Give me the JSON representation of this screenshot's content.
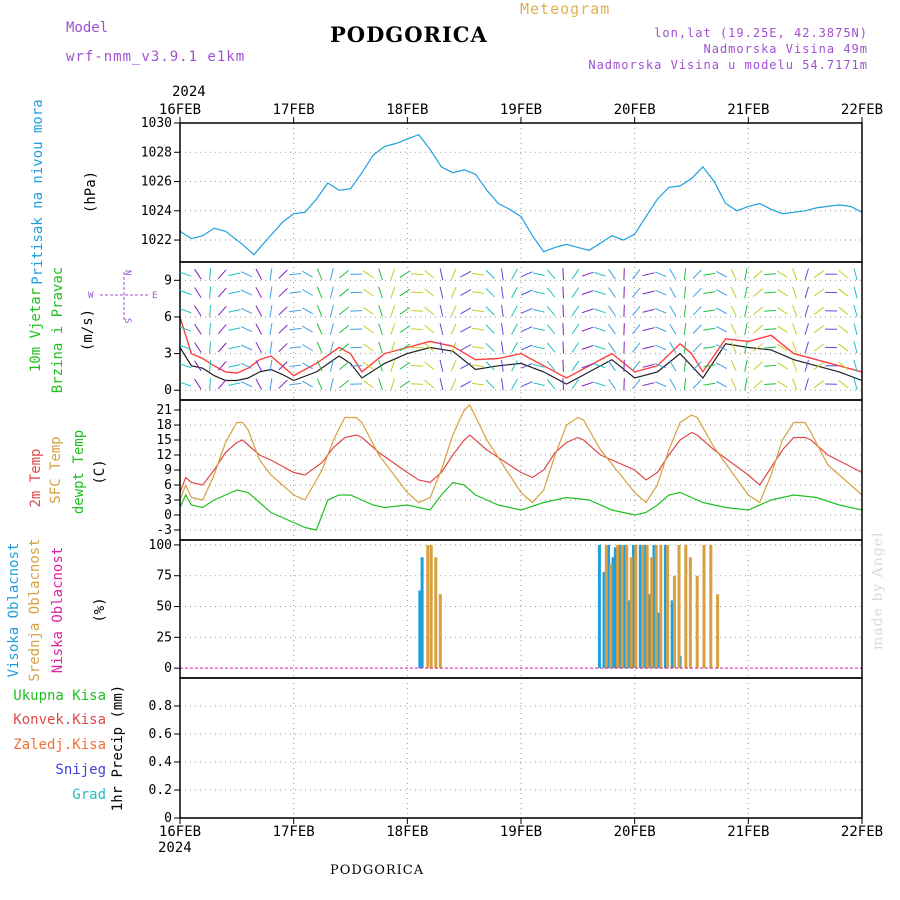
{
  "header": {
    "city": "PODGORICA",
    "meteogram": "Meteogram",
    "model_label": "Model",
    "model_name": "wrf-nmm_v3.9.1 e1km",
    "location_lines": [
      "lon,lat (19.25E, 42.3875N)",
      "Nadmorska Visina 49m",
      "Nadmorska Visina u modelu 54.7171m"
    ],
    "year": "2024",
    "footer_city": "PODGORICA",
    "credit": "made by Angel"
  },
  "colors": {
    "pressure": "#1ea0e0",
    "temp2m": "#e04848",
    "sfc": "#d8a040",
    "dewpt": "#20c020",
    "wind_speed": "#202020",
    "gust": "#ff4040",
    "high_cloud": "#1ea0e0",
    "mid_cloud": "#d8a040",
    "low_cloud": "#e020a0",
    "precip_total": "#20c020",
    "precip_conv": "#e04848",
    "precip_frz": "#f07030",
    "snow": "#4040e0",
    "hail": "#20c0c0",
    "axis_label_purple": "#a050d0"
  },
  "chart_data": [
    {
      "type": "line",
      "name": "pressure",
      "ylabel_lines": [
        "Pritisak na nivou mora",
        "(hPa)"
      ],
      "ylim": [
        1020.5,
        1030
      ],
      "yticks": [
        1022,
        1024,
        1026,
        1028,
        1030
      ],
      "x_dates": [
        "16FEB",
        "17FEB",
        "18FEB",
        "19FEB",
        "20FEB",
        "21FEB",
        "22FEB"
      ],
      "series": [
        {
          "key": "pressure",
          "x": [
            0,
            0.1,
            0.2,
            0.3,
            0.4,
            0.55,
            0.65,
            0.75,
            0.9,
            1.0,
            1.1,
            1.2,
            1.3,
            1.4,
            1.5,
            1.6,
            1.7,
            1.8,
            1.9,
            2.0,
            2.1,
            2.2,
            2.3,
            2.4,
            2.5,
            2.6,
            2.7,
            2.8,
            2.9,
            3.0,
            3.1,
            3.2,
            3.3,
            3.4,
            3.5,
            3.6,
            3.7,
            3.8,
            3.9,
            4.0,
            4.1,
            4.2,
            4.3,
            4.4,
            4.5,
            4.6,
            4.7,
            4.8,
            4.9,
            5.0,
            5.1,
            5.2,
            5.3,
            5.4,
            5.5,
            5.6,
            5.7,
            5.8,
            5.9,
            6.0
          ],
          "y": [
            1022.6,
            1022.1,
            1022.3,
            1022.8,
            1022.6,
            1021.7,
            1021.0,
            1021.9,
            1023.2,
            1023.8,
            1023.9,
            1024.8,
            1025.9,
            1025.4,
            1025.5,
            1026.6,
            1027.8,
            1028.4,
            1028.6,
            1028.9,
            1029.2,
            1028.2,
            1027.0,
            1026.6,
            1026.8,
            1026.5,
            1025.4,
            1024.5,
            1024.1,
            1023.6,
            1022.3,
            1021.2,
            1021.5,
            1021.7,
            1021.5,
            1021.3,
            1021.8,
            1022.3,
            1022.0,
            1022.4,
            1023.6,
            1024.8,
            1025.6,
            1025.7,
            1026.2,
            1027.0,
            1026.0,
            1024.5,
            1024.0,
            1024.3,
            1024.5,
            1024.1,
            1023.8,
            1023.9,
            1024.0,
            1024.2,
            1024.3,
            1024.4,
            1024.3,
            1023.9
          ]
        }
      ]
    },
    {
      "type": "line",
      "name": "wind",
      "ylabel_lines": [
        "10m Vjetar",
        "Brzina i Pravac",
        "(m/s)"
      ],
      "compass": {
        "n": "N",
        "s": "S",
        "w": "W",
        "e": "E"
      },
      "ylim": [
        -0.8,
        10.5
      ],
      "yticks": [
        0,
        3,
        6,
        9
      ],
      "series": [
        {
          "key": "wind_speed",
          "x": [
            0,
            0.1,
            0.2,
            0.3,
            0.4,
            0.5,
            0.6,
            0.7,
            0.8,
            0.9,
            1.0,
            1.2,
            1.4,
            1.5,
            1.6,
            1.8,
            2.0,
            2.2,
            2.4,
            2.6,
            2.8,
            3.0,
            3.2,
            3.4,
            3.6,
            3.8,
            4.0,
            4.2,
            4.4,
            4.5,
            4.6,
            4.8,
            5.0,
            5.2,
            5.4,
            5.6,
            5.8,
            6.0
          ],
          "y": [
            3.5,
            2.0,
            1.8,
            1.2,
            0.8,
            0.8,
            1.0,
            1.5,
            1.7,
            1.3,
            0.8,
            1.5,
            2.8,
            2.2,
            1.0,
            2.2,
            3.0,
            3.5,
            3.2,
            1.7,
            2.0,
            2.2,
            1.5,
            0.5,
            1.5,
            2.5,
            1.0,
            1.5,
            3.0,
            2.0,
            1.0,
            3.8,
            3.5,
            3.3,
            2.5,
            2.0,
            1.5,
            0.8
          ]
        },
        {
          "key": "gust",
          "x": [
            0,
            0.1,
            0.2,
            0.3,
            0.4,
            0.5,
            0.6,
            0.7,
            0.8,
            0.9,
            1.0,
            1.2,
            1.4,
            1.5,
            1.6,
            1.8,
            2.0,
            2.2,
            2.4,
            2.6,
            2.8,
            3.0,
            3.2,
            3.4,
            3.6,
            3.8,
            4.0,
            4.2,
            4.4,
            4.5,
            4.6,
            4.8,
            5.0,
            5.2,
            5.4,
            5.6,
            5.8,
            6.0
          ],
          "y": [
            6.0,
            3.0,
            2.6,
            2.0,
            1.5,
            1.4,
            1.8,
            2.5,
            2.8,
            2.0,
            1.2,
            2.2,
            3.5,
            3.0,
            1.5,
            3.0,
            3.5,
            4.0,
            3.6,
            2.5,
            2.6,
            3.0,
            2.0,
            1.0,
            2.0,
            3.0,
            1.5,
            2.0,
            3.8,
            3.0,
            1.5,
            4.2,
            4.0,
            4.5,
            3.0,
            2.5,
            2.0,
            1.5
          ]
        }
      ]
    },
    {
      "type": "line",
      "name": "temperature",
      "ylabel_lines": [
        "2m Temp",
        "SFC Temp",
        "dewpt Temp",
        "(C)"
      ],
      "ylim": [
        -5,
        23
      ],
      "yticks": [
        -3,
        0,
        3,
        6,
        9,
        12,
        15,
        18,
        21
      ],
      "series": [
        {
          "key": "temp2m",
          "x": [
            0,
            0.05,
            0.1,
            0.2,
            0.3,
            0.4,
            0.5,
            0.55,
            0.6,
            0.7,
            0.8,
            1.0,
            1.1,
            1.25,
            1.35,
            1.45,
            1.55,
            1.6,
            1.75,
            2.0,
            2.1,
            2.2,
            2.3,
            2.4,
            2.5,
            2.55,
            2.7,
            3.0,
            3.1,
            3.2,
            3.3,
            3.4,
            3.5,
            3.55,
            3.7,
            4.0,
            4.1,
            4.2,
            4.3,
            4.4,
            4.5,
            4.55,
            4.7,
            5.0,
            5.1,
            5.2,
            5.3,
            5.4,
            5.5,
            5.55,
            5.7,
            6.0
          ],
          "y": [
            4.5,
            7.5,
            6.5,
            6.0,
            9.0,
            12.5,
            14.5,
            15.0,
            14.0,
            12.0,
            11.0,
            8.5,
            8.0,
            10.5,
            13.5,
            15.5,
            16.0,
            15.5,
            12.5,
            8.5,
            7.0,
            6.5,
            8.5,
            12.0,
            15.0,
            16.0,
            13.0,
            8.5,
            7.5,
            9.0,
            12.5,
            14.5,
            15.5,
            15.0,
            12.0,
            9.0,
            7.0,
            8.5,
            12.0,
            15.0,
            16.5,
            16.0,
            13.0,
            8.0,
            6.0,
            9.5,
            13.0,
            15.5,
            15.5,
            15.0,
            12.0,
            8.5
          ]
        },
        {
          "key": "sfc",
          "x": [
            0,
            0.05,
            0.1,
            0.2,
            0.3,
            0.4,
            0.5,
            0.55,
            0.6,
            0.7,
            0.8,
            1.0,
            1.1,
            1.25,
            1.35,
            1.45,
            1.55,
            1.6,
            1.75,
            2.0,
            2.1,
            2.2,
            2.3,
            2.4,
            2.5,
            2.55,
            2.7,
            3.0,
            3.1,
            3.2,
            3.3,
            3.4,
            3.5,
            3.55,
            3.7,
            4.0,
            4.1,
            4.2,
            4.3,
            4.4,
            4.5,
            4.55,
            4.7,
            5.0,
            5.1,
            5.2,
            5.3,
            5.4,
            5.5,
            5.55,
            5.7,
            6.0
          ],
          "y": [
            3.0,
            6.0,
            3.5,
            3.0,
            8.0,
            14.5,
            18.5,
            18.5,
            17.0,
            11.0,
            8.0,
            4.0,
            3.0,
            9.0,
            15.0,
            19.5,
            19.5,
            18.5,
            12.0,
            4.5,
            2.5,
            3.5,
            9.0,
            16.0,
            21.0,
            22.0,
            15.0,
            4.5,
            2.5,
            5.0,
            12.0,
            18.0,
            19.5,
            19.0,
            13.0,
            4.5,
            2.5,
            6.0,
            13.0,
            18.5,
            20.0,
            19.5,
            13.5,
            4.0,
            2.5,
            8.0,
            15.0,
            18.5,
            18.5,
            16.5,
            10.0,
            4.0
          ]
        },
        {
          "key": "dewpt",
          "x": [
            0,
            0.05,
            0.1,
            0.2,
            0.3,
            0.4,
            0.5,
            0.6,
            0.7,
            0.8,
            0.9,
            1.0,
            1.1,
            1.2,
            1.3,
            1.4,
            1.5,
            1.6,
            1.7,
            1.8,
            2.0,
            2.2,
            2.3,
            2.4,
            2.5,
            2.6,
            2.8,
            3.0,
            3.2,
            3.4,
            3.6,
            3.8,
            4.0,
            4.1,
            4.2,
            4.3,
            4.4,
            4.5,
            4.6,
            4.8,
            5.0,
            5.2,
            5.4,
            5.6,
            5.8,
            6.0
          ],
          "y": [
            1.5,
            4.0,
            2.0,
            1.5,
            3.0,
            4.0,
            5.0,
            4.5,
            2.5,
            0.5,
            -0.5,
            -1.5,
            -2.5,
            -3.0,
            3.0,
            4.0,
            4.0,
            3.0,
            2.0,
            1.5,
            2.0,
            1.0,
            4.0,
            6.5,
            6.0,
            4.0,
            2.0,
            1.0,
            2.5,
            3.5,
            3.0,
            1.0,
            0.0,
            0.5,
            2.0,
            4.0,
            4.5,
            3.5,
            2.5,
            1.5,
            1.0,
            3.0,
            4.0,
            3.5,
            2.0,
            1.0
          ]
        }
      ]
    },
    {
      "type": "bar",
      "name": "clouds",
      "ylabel_lines": [
        "Visoka Oblacnost",
        "Srednja Oblacnost",
        "Niska Oblacnost",
        "(%)"
      ],
      "ylim": [
        -8,
        104
      ],
      "yticks": [
        0,
        25,
        50,
        75,
        100
      ],
      "series": [
        {
          "key": "high_cloud",
          "x": [
            2.11,
            2.13,
            3.69,
            3.73,
            3.77,
            3.81,
            3.83,
            3.87,
            3.91,
            3.95,
            3.99,
            4.05,
            4.09,
            4.13,
            4.17,
            4.21,
            4.27,
            4.33,
            4.4
          ],
          "y": [
            63,
            90,
            100,
            78,
            100,
            90,
            98,
            100,
            100,
            55,
            100,
            100,
            100,
            60,
            100,
            45,
            100,
            55,
            10
          ]
        },
        {
          "key": "mid_cloud",
          "x": [
            2.18,
            2.21,
            2.25,
            2.29,
            3.75,
            3.79,
            3.85,
            3.89,
            3.93,
            3.97,
            4.01,
            4.07,
            4.11,
            4.15,
            4.19,
            4.23,
            4.29,
            4.35,
            4.39,
            4.45,
            4.49,
            4.55,
            4.61,
            4.67,
            4.73
          ],
          "y": [
            100,
            100,
            90,
            60,
            100,
            85,
            100,
            100,
            100,
            90,
            100,
            100,
            100,
            90,
            100,
            100,
            100,
            75,
            100,
            100,
            90,
            75,
            100,
            100,
            60
          ]
        },
        {
          "key": "low_cloud",
          "x": [],
          "y": []
        }
      ]
    },
    {
      "type": "line",
      "name": "precipitation",
      "ylabel_lines": [
        "1hr Precip (mm)"
      ],
      "legend": [
        "Ukupna Kisa",
        "Konvek.Kisa",
        "Zaledj.Kisa",
        "Snijeg",
        "Grad"
      ],
      "ylim": [
        0,
        1.0
      ],
      "yticks": [
        0,
        0.2,
        0.4,
        0.6,
        0.8
      ],
      "series": [
        {
          "key": "precip_total",
          "x": [
            0,
            6
          ],
          "y": [
            0,
            0
          ]
        }
      ]
    }
  ]
}
